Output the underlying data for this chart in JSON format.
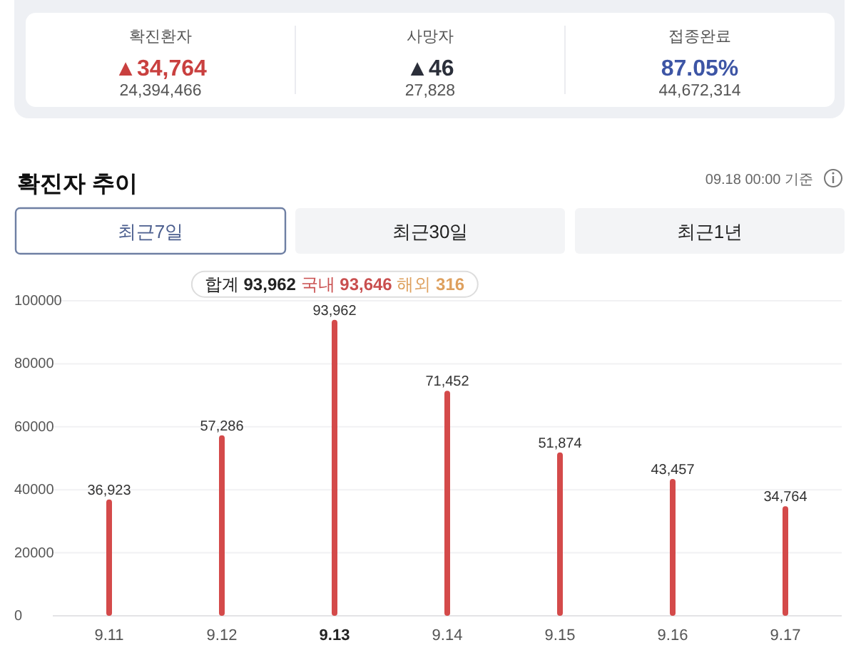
{
  "chart_data": [
    {
      "type": "other",
      "categories": [
        "확진환자",
        "사망자",
        "접종완료"
      ],
      "value_labels": [
        "▲34,764",
        "▲46",
        "87.05%"
      ],
      "annotations": [
        "24,394,466",
        "27,828",
        "44,672,314"
      ]
    },
    {
      "type": "bar",
      "title": "확진자 추이",
      "subtitle": "09.18 00:00 기준",
      "categories": [
        "9.11",
        "9.12",
        "9.13",
        "9.14",
        "9.15",
        "9.16",
        "9.17"
      ],
      "values": [
        36923,
        57286,
        93962,
        71452,
        51874,
        43457,
        34764
      ],
      "value_labels": [
        "36,923",
        "57,286",
        "93,962",
        "71,452",
        "51,874",
        "43,457",
        "34,764"
      ],
      "color": "#d44a4a",
      "ylim": [
        0,
        100000
      ],
      "yticks": [
        0,
        20000,
        40000,
        60000,
        80000,
        100000
      ],
      "grid": "y",
      "annotations": [
        "최근7일",
        "최근30일",
        "최근1년",
        {
          "text": "합계 93,962 국내 93,646 해외 316",
          "x": "9.13",
          "y": 93962
        }
      ]
    }
  ]
}
